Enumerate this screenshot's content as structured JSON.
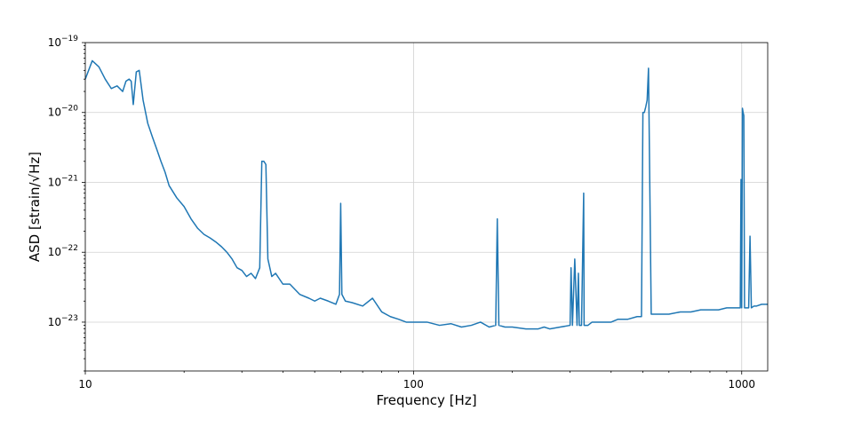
{
  "chart_data": {
    "type": "line",
    "title": "",
    "xlabel": "Frequency [Hz]",
    "ylabel": "ASD [strain/√Hz]",
    "x_scale": "log",
    "y_scale": "log",
    "xlim": [
      10,
      1200
    ],
    "ylim": [
      2e-24,
      1e-19
    ],
    "grid": true,
    "x_ticks": [
      {
        "value": 10,
        "label": "10"
      },
      {
        "value": 100,
        "label": "100"
      },
      {
        "value": 1000,
        "label": "1000"
      }
    ],
    "y_ticks": [
      {
        "value": 1e-19,
        "base": "10",
        "exp": "−19"
      },
      {
        "value": 1e-20,
        "base": "10",
        "exp": "−20"
      },
      {
        "value": 1e-21,
        "base": "10",
        "exp": "−21"
      },
      {
        "value": 1e-22,
        "base": "10",
        "exp": "−22"
      },
      {
        "value": 1e-23,
        "base": "10",
        "exp": "−23"
      }
    ],
    "series": [
      {
        "color": "#1f77b4",
        "x": [
          10,
          10.5,
          11,
          11.5,
          12,
          12.5,
          13,
          13.3,
          13.6,
          13.8,
          14.0,
          14.3,
          14.6,
          15,
          15.5,
          16,
          16.5,
          17,
          17.5,
          18,
          19,
          20,
          21,
          22,
          23,
          24,
          25,
          26,
          27,
          28,
          29,
          30,
          31,
          32,
          33,
          34,
          34.5,
          35,
          35.5,
          36,
          37,
          38,
          40,
          42,
          45,
          48,
          50,
          52,
          55,
          58,
          59.5,
          60,
          60.5,
          62,
          65,
          70,
          75,
          80,
          85,
          90,
          95,
          100,
          110,
          120,
          130,
          140,
          150,
          160,
          170,
          178,
          180,
          182,
          190,
          200,
          220,
          240,
          250,
          260,
          280,
          300,
          302,
          305,
          310,
          315,
          318,
          320,
          325,
          330,
          331,
          333,
          340,
          350,
          380,
          400,
          420,
          450,
          480,
          495,
          500,
          505,
          510,
          515,
          520,
          530,
          560,
          600,
          650,
          700,
          750,
          800,
          850,
          900,
          950,
          990,
          995,
          1000,
          1005,
          1010,
          1015,
          1020,
          1030,
          1050,
          1060,
          1070,
          1090,
          1110,
          1150,
          1200
        ],
        "y": [
          3e-20,
          5.5e-20,
          4.5e-20,
          3e-20,
          2.2e-20,
          2.4e-20,
          2e-20,
          2.8e-20,
          3e-20,
          2.8e-20,
          1.3e-20,
          3.8e-20,
          4e-20,
          1.5e-20,
          7e-21,
          4.5e-21,
          3e-21,
          2e-21,
          1.4e-21,
          9e-22,
          6e-22,
          4.5e-22,
          3e-22,
          2.2e-22,
          1.8e-22,
          1.6e-22,
          1.4e-22,
          1.2e-22,
          1e-22,
          8e-23,
          6e-23,
          5.5e-23,
          4.5e-23,
          5e-23,
          4.2e-23,
          6e-23,
          2e-21,
          2e-21,
          1.8e-21,
          8e-23,
          4.5e-23,
          5e-23,
          3.5e-23,
          3.5e-23,
          2.5e-23,
          2.2e-23,
          2e-23,
          2.2e-23,
          2e-23,
          1.8e-23,
          2.5e-23,
          5e-22,
          2.5e-23,
          2e-23,
          1.9e-23,
          1.7e-23,
          2.2e-23,
          1.4e-23,
          1.2e-23,
          1.1e-23,
          1e-23,
          1e-23,
          1e-23,
          9e-24,
          9.5e-24,
          8.5e-24,
          9e-24,
          1e-23,
          8.5e-24,
          9e-24,
          3e-22,
          9e-24,
          8.5e-24,
          8.5e-24,
          8e-24,
          8e-24,
          8.5e-24,
          8e-24,
          8.5e-24,
          9e-24,
          6e-23,
          9e-24,
          8e-23,
          9e-24,
          5e-23,
          9e-24,
          9e-24,
          7e-22,
          9e-24,
          9e-24,
          9e-24,
          1e-23,
          1e-23,
          1e-23,
          1.1e-23,
          1.1e-23,
          1.2e-23,
          1.2e-23,
          1e-20,
          1e-20,
          1.2e-20,
          1.5e-20,
          4.3e-20,
          1.3e-23,
          1.3e-23,
          1.3e-23,
          1.4e-23,
          1.4e-23,
          1.5e-23,
          1.5e-23,
          1.5e-23,
          1.6e-23,
          1.6e-23,
          1.6e-23,
          1.1e-21,
          1.6e-23,
          1.15e-20,
          1e-20,
          9e-21,
          1.6e-23,
          1.6e-23,
          1.6e-23,
          1.7e-22,
          1.6e-23,
          1.7e-23,
          1.7e-23,
          1.8e-23,
          1.8e-23
        ]
      }
    ]
  }
}
